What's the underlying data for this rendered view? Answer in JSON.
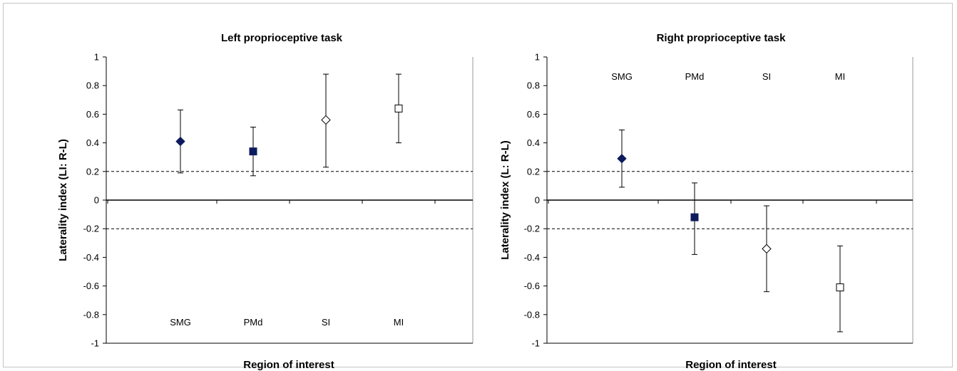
{
  "chart_data": [
    {
      "type": "scatter",
      "title": "Left proprioceptive task",
      "xlabel": "Region of interest",
      "ylabel": "Laterality index (LI: R-L)",
      "ylim": [
        -1,
        1
      ],
      "yticks": [
        1,
        0.8,
        0.6,
        0.4,
        0.2,
        0,
        -0.2,
        -0.4,
        -0.6,
        -0.8,
        -1
      ],
      "grid": false,
      "reference_lines": [
        0.2,
        0,
        -0.2
      ],
      "category_labels_position": "bottom",
      "categories": [
        "SMG",
        "PMd",
        "SI",
        "MI"
      ],
      "markers": [
        "filled-diamond",
        "filled-square",
        "open-diamond",
        "open-square"
      ],
      "marker_color": "#0d1b5c",
      "values": [
        0.41,
        0.34,
        0.56,
        0.64
      ],
      "error_low": [
        0.19,
        0.17,
        0.23,
        0.4
      ],
      "error_high": [
        0.63,
        0.51,
        0.88,
        0.88
      ]
    },
    {
      "type": "scatter",
      "title": "Right proprioceptive task",
      "xlabel": "Region of interest",
      "ylabel": "Laterality index (L: R-L)",
      "ylim": [
        -1,
        1
      ],
      "yticks": [
        1,
        0.8,
        0.6,
        0.4,
        0.2,
        0,
        -0.2,
        -0.4,
        -0.6,
        -0.8,
        -1
      ],
      "grid": false,
      "reference_lines": [
        0.2,
        0,
        -0.2
      ],
      "category_labels_position": "top",
      "categories": [
        "SMG",
        "PMd",
        "SI",
        "MI"
      ],
      "markers": [
        "filled-diamond",
        "filled-square",
        "open-diamond",
        "open-square"
      ],
      "marker_color": "#0d1b5c",
      "values": [
        0.29,
        -0.12,
        -0.34,
        -0.61
      ],
      "error_low": [
        0.09,
        -0.38,
        -0.64,
        -0.92
      ],
      "error_high": [
        0.49,
        0.12,
        -0.04,
        -0.32
      ]
    }
  ]
}
